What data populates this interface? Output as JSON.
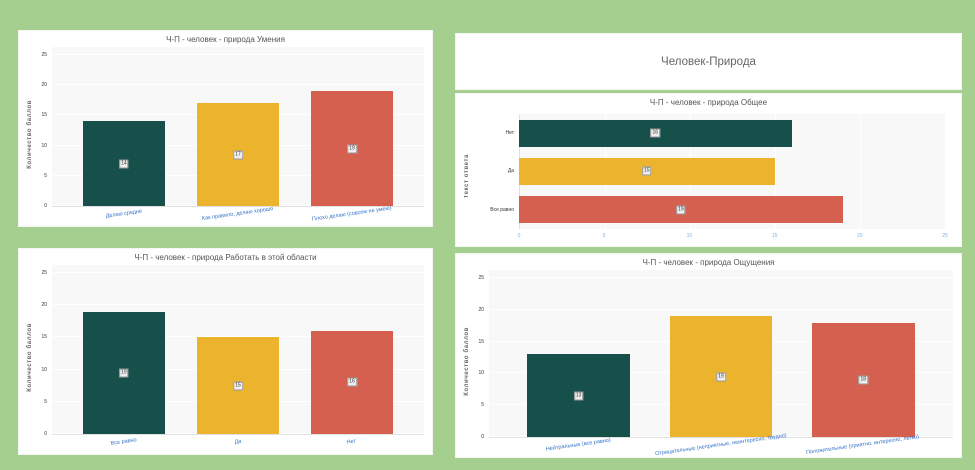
{
  "colors": {
    "page_bg": "#a5cf8e",
    "panel_bg": "#ffffff",
    "plot_bg": "#f8f8f8",
    "palette": [
      "#17504a",
      "#ecb32d",
      "#d6604f"
    ],
    "category_label_blue": "#3473c9",
    "axis_tick_blue": "#7fb1e3"
  },
  "header": {
    "title": "Человек-Природа"
  },
  "chart_data": [
    {
      "type": "bar",
      "title": "Ч-П - человек - природа Умения",
      "ylabel": "Количество баллов",
      "categories": [
        "Делаю средне",
        "Как правило, делаю хорошо",
        "Плохо делаю (совсем не умею)"
      ],
      "values": [
        14,
        17,
        19
      ],
      "ymax": 25,
      "ticks": [
        0,
        5,
        10,
        15,
        20,
        25
      ],
      "grid": true,
      "legend": "none"
    },
    {
      "type": "hbar",
      "title": "Ч-П - человек - природа Общее",
      "ylabel": "Текст ответа",
      "categories": [
        "Нет",
        "Да",
        "Все равно"
      ],
      "values": [
        16,
        15,
        19
      ],
      "xmax": 25,
      "ticks": [
        0,
        5,
        10,
        15,
        20,
        25
      ],
      "grid": true,
      "legend": "none"
    },
    {
      "type": "bar",
      "title": "Ч-П - человек - природа Работать в этой области",
      "ylabel": "Количество баллов",
      "categories": [
        "Все равно",
        "Да",
        "Нет"
      ],
      "values": [
        19,
        15,
        16
      ],
      "ymax": 25,
      "ticks": [
        0,
        5,
        10,
        15,
        20,
        25
      ],
      "grid": true,
      "legend": "none"
    },
    {
      "type": "bar",
      "title": "Ч-П - человек - природа Ощущения",
      "ylabel": "Количество баллов",
      "categories": [
        "Нейтральные (все равно)",
        "Отрицательные (неприятные, неинтересно, трудно)",
        "Положительные (приятно, интересно, легко)"
      ],
      "values": [
        13,
        19,
        18
      ],
      "ymax": 25,
      "ticks": [
        0,
        5,
        10,
        15,
        20,
        25
      ],
      "grid": true,
      "legend": "none"
    }
  ]
}
